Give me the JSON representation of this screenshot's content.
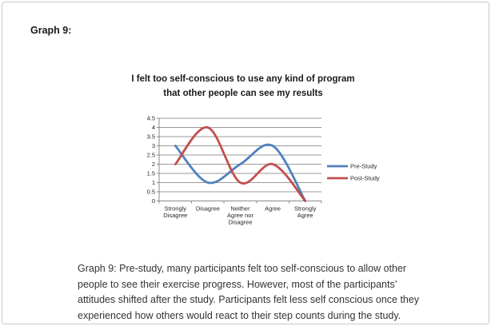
{
  "page": {
    "heading": "Graph 9:",
    "caption": {
      "lines": [
        "Graph 9: Pre-study, many participants felt too self-conscious to allow other",
        "people to see their exercise progress. However, most of the participants’",
        "attitudes shifted after the study. Participants felt less self conscious once they",
        "experienced how others would react to their step counts during the study."
      ]
    }
  },
  "chart_data": {
    "type": "line",
    "title": "I felt too self-conscious to use any kind of program that other people can see my results",
    "categories": [
      "Strongly Disagree",
      "Disagree",
      "Neither Agree nor Disagree",
      "Agree",
      "Strongly Agree"
    ],
    "series": [
      {
        "name": "Pre-Study",
        "color": "#4F81BD",
        "values": [
          3,
          1,
          2,
          3,
          0
        ]
      },
      {
        "name": "Post-Study",
        "color": "#C0504D",
        "values": [
          2,
          4,
          1,
          2,
          0
        ]
      }
    ],
    "ylim": [
      0,
      4.5
    ],
    "ytick_step": 0.5,
    "grid": true,
    "smooth": true,
    "legend_position": "right",
    "colors": {
      "gridline": "#9a9a9a",
      "axis": "#8a8a8a",
      "tick_text": "#262626"
    }
  }
}
